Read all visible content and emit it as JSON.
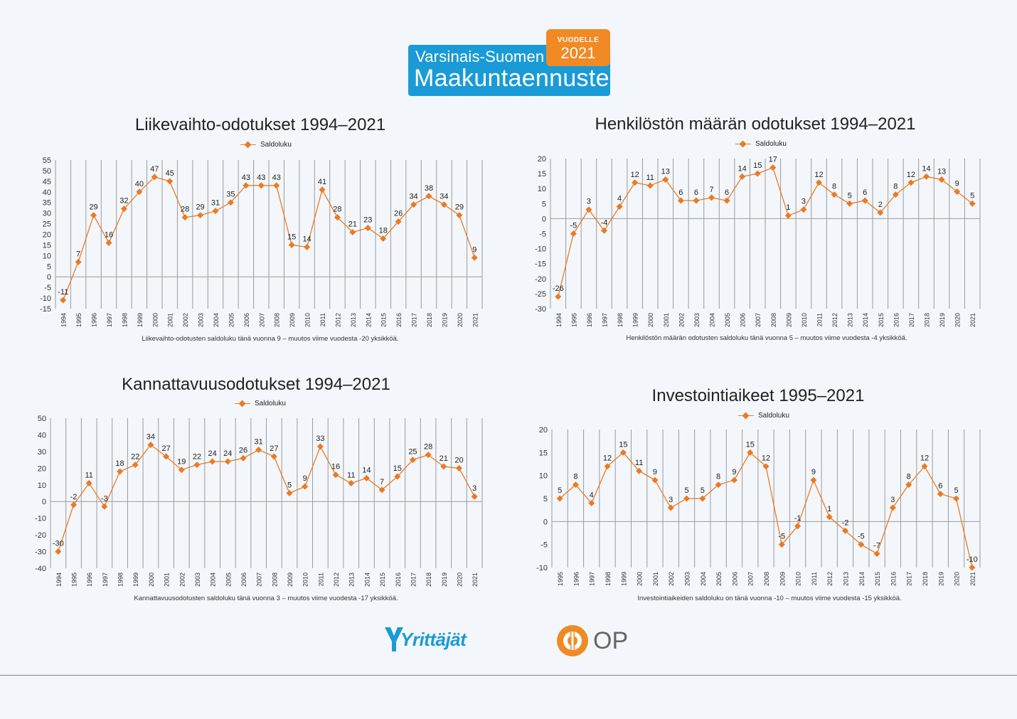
{
  "header": {
    "line1": "Varsinais-Suomen",
    "line2": "Maakuntaennuste",
    "badge_top": "VUODELLE",
    "badge_year": "2021",
    "colors": {
      "blue": "#1a9bd6",
      "orange": "#f08a24"
    }
  },
  "legend_label": "Saldoluku",
  "series_color": "#ec7a24",
  "logos": {
    "yrittajat": "Yrittäjät",
    "op": "OP"
  },
  "chart_data": [
    {
      "type": "line",
      "title": "Liikevaihto-odotukset 1994–2021",
      "caption": "Liikevaihto-odotusten saldoluku tänä vuonna 9 – muutos viime vuodesta -20 yksikköä.",
      "x": [
        "1994",
        "1995",
        "1996",
        "1997",
        "1998",
        "1999",
        "2000",
        "2001",
        "2002",
        "2003",
        "2004",
        "2005",
        "2006",
        "2007",
        "2008",
        "2009",
        "2010",
        "2011",
        "2012",
        "2013",
        "2014",
        "2015",
        "2016",
        "2017",
        "2018",
        "2019",
        "2020",
        "2021"
      ],
      "series": [
        {
          "name": "Saldoluku",
          "values": [
            -11,
            7,
            29,
            16,
            32,
            40,
            47,
            45,
            28,
            29,
            31,
            35,
            43,
            43,
            43,
            15,
            14,
            41,
            28,
            21,
            23,
            18,
            26,
            34,
            38,
            34,
            29,
            9
          ]
        }
      ],
      "ylim": [
        -15,
        55
      ],
      "yticks": [
        -15,
        -10,
        -5,
        0,
        5,
        10,
        15,
        20,
        25,
        30,
        35,
        40,
        45,
        50,
        55
      ],
      "legend": "top-center",
      "grid": "vertical"
    },
    {
      "type": "line",
      "title": "Henkilöstön määrän odotukset 1994–2021",
      "caption": "Henkilöstön määrän odotusten saldoluku tänä vuonna 5 – muutos viime vuodesta -4 yksikköä.",
      "x": [
        "1994",
        "1995",
        "1996",
        "1997",
        "1998",
        "1999",
        "2000",
        "2001",
        "2002",
        "2003",
        "2004",
        "2005",
        "2006",
        "2007",
        "2008",
        "2009",
        "2010",
        "2011",
        "2012",
        "2013",
        "2014",
        "2015",
        "2016",
        "2017",
        "2018",
        "2019",
        "2020",
        "2021"
      ],
      "series": [
        {
          "name": "Saldoluku",
          "values": [
            -26,
            -5,
            3,
            -4,
            4,
            12,
            11,
            13,
            6,
            6,
            7,
            6,
            14,
            15,
            17,
            1,
            3,
            12,
            8,
            5,
            6,
            2,
            8,
            12,
            14,
            13,
            9,
            5
          ]
        }
      ],
      "ylim": [
        -30,
        20
      ],
      "yticks": [
        -30,
        -25,
        -20,
        -15,
        -10,
        -5,
        0,
        5,
        10,
        15,
        20
      ],
      "legend": "top-center",
      "grid": "vertical"
    },
    {
      "type": "line",
      "title": "Kannattavuusodotukset 1994–2021",
      "caption": "Kannattavuusodotusten saldoluku tänä vuonna 3 – muutos viime vuodesta -17 yksikköä.",
      "x": [
        "1994",
        "1995",
        "1996",
        "1997",
        "1998",
        "1999",
        "2000",
        "2001",
        "2002",
        "2003",
        "2004",
        "2005",
        "2006",
        "2007",
        "2008",
        "2009",
        "2010",
        "2011",
        "2012",
        "2013",
        "2014",
        "2015",
        "2016",
        "2017",
        "2018",
        "2019",
        "2020",
        "2021"
      ],
      "series": [
        {
          "name": "Saldoluku",
          "values": [
            -30,
            -2,
            11,
            -3,
            18,
            22,
            34,
            27,
            19,
            22,
            24,
            24,
            26,
            31,
            27,
            5,
            9,
            33,
            16,
            11,
            14,
            7,
            15,
            25,
            28,
            21,
            20,
            3
          ]
        }
      ],
      "ylim": [
        -40,
        50
      ],
      "yticks": [
        -40,
        -30,
        -20,
        -10,
        0,
        10,
        20,
        30,
        40,
        50
      ],
      "legend": "top-center",
      "grid": "vertical"
    },
    {
      "type": "line",
      "title": "Investointiaikeet 1995–2021",
      "caption": "Investointiaikeiden saldoluku on tänä vuonna -10 – muutos viime vuodesta -15 yksikköä.",
      "x": [
        "1995",
        "1996",
        "1997",
        "1998",
        "1999",
        "2000",
        "2001",
        "2002",
        "2003",
        "2004",
        "2005",
        "2006",
        "2007",
        "2008",
        "2009",
        "2010",
        "2011",
        "2012",
        "2013",
        "2014",
        "2015",
        "2016",
        "2017",
        "2018",
        "2019",
        "2020",
        "2021"
      ],
      "series": [
        {
          "name": "Saldoluku",
          "values": [
            5,
            8,
            4,
            12,
            15,
            11,
            9,
            3,
            5,
            5,
            8,
            9,
            15,
            12,
            -5,
            -1,
            9,
            1,
            -2,
            -5,
            -7,
            3,
            8,
            12,
            6,
            5,
            -10
          ]
        }
      ],
      "ylim": [
        -10,
        20
      ],
      "yticks": [
        -10,
        -5,
        0,
        5,
        10,
        15,
        20
      ],
      "legend": "top-center",
      "grid": "vertical"
    }
  ]
}
